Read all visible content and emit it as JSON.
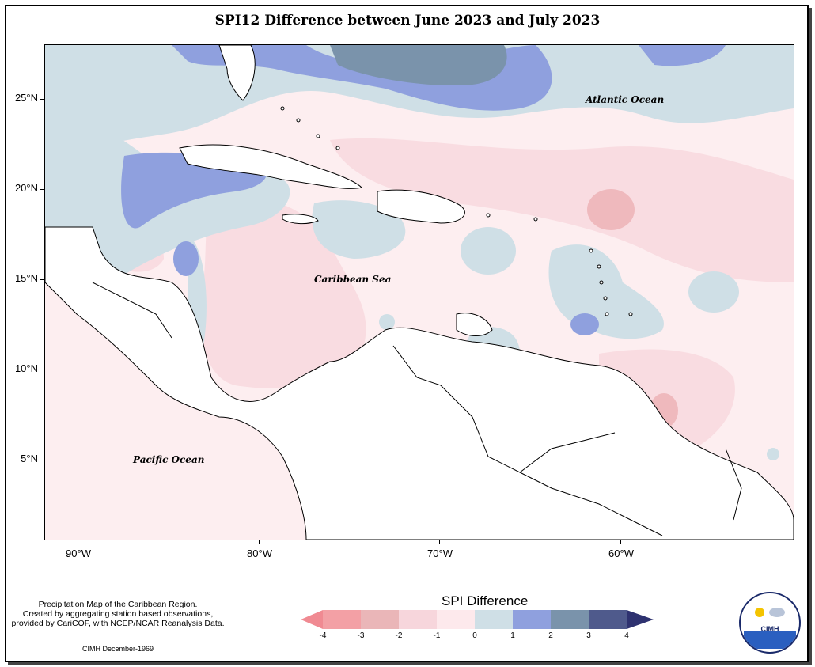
{
  "title": "SPI12 Difference between June 2023 and July 2023",
  "axes": {
    "lat_ticks": [
      "25°N",
      "20°N",
      "15°N",
      "10°N",
      "5°N"
    ],
    "lon_ticks": [
      "90°W",
      "80°W",
      "70°W",
      "60°W"
    ]
  },
  "ocean_labels": {
    "atlantic": "Atlantic Ocean",
    "caribbean": "Caribbean Sea",
    "pacific": "Pacific Ocean"
  },
  "footer": {
    "line1": "Precipitation Map of the Caribbean Region.",
    "line2": "Created by aggregating station based observations,",
    "line3": "provided by CariCOF, with NCEP/NCAR Reanalysis Data.",
    "credit": "CIMH December-1969"
  },
  "legend": {
    "title": "SPI Difference",
    "ticks": [
      "-4",
      "-3",
      "-2",
      "-1",
      "0",
      "1",
      "2",
      "3",
      "4"
    ],
    "colors": [
      "#f3a0a5",
      "#eab6b8",
      "#f7d6dc",
      "#fde9ec",
      "#cfdfe6",
      "#8fa0de",
      "#7a93ab",
      "#4f5a8c"
    ],
    "arrow_left_color": "#f08a92",
    "arrow_right_color": "#2e3270"
  },
  "logo": {
    "label": "CIMH"
  }
}
